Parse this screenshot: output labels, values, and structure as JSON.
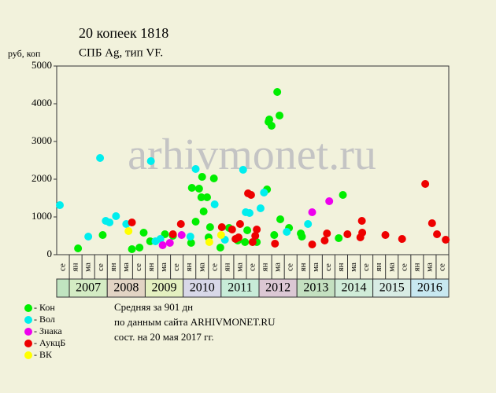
{
  "chart_data": {
    "type": "scatter",
    "title": "20 копеек 1818",
    "subtitle": "СПБ Ag, тип VF.",
    "y_label": "руб, коп",
    "watermark": "arhivmonet.ru",
    "xlim": [
      2006.667,
      2017.0
    ],
    "ylim": [
      0,
      5000
    ],
    "yticks": [
      0,
      1000,
      2000,
      3000,
      4000,
      5000
    ],
    "column_labels": [
      "се",
      "ян",
      "ма",
      "се",
      "ян",
      "ма",
      "се",
      "ян",
      "ма",
      "се",
      "ян",
      "ма",
      "се",
      "ян",
      "ма",
      "се",
      "ян",
      "ма",
      "се",
      "ян",
      "ма",
      "се",
      "ян",
      "ма",
      "се",
      "ян",
      "ма",
      "се",
      "ян",
      "ма",
      "се"
    ],
    "year_labels": [
      null,
      "2007",
      "2008",
      "2009",
      "2010",
      "2011",
      "2012",
      "2013",
      "2014",
      "2015",
      "2016"
    ],
    "year_colors": [
      "#c0e4c0",
      "#d4ecc4",
      "#e2d4c4",
      "#e4f0c0",
      "#d8d8e8",
      "#c8ecd8",
      "#dcc8d4",
      "#c4e0c0",
      "#d0ecd8",
      "#d8ece4",
      "#c8e8f0"
    ],
    "series": [
      {
        "name": "- Кон",
        "color": "#00ee00",
        "x": [
          2007.23,
          2007.88,
          2008.65,
          2008.85,
          2008.96,
          2009.13,
          2009.52,
          2009.73,
          2010.21,
          2010.33,
          2010.23,
          2010.42,
          2010.5,
          2010.48,
          2010.54,
          2010.63,
          2010.67,
          2010.71,
          2010.81,
          2010.98,
          2011.21,
          2011.44,
          2011.63,
          2011.69,
          2011.94,
          2012.21,
          2012.25,
          2012.27,
          2012.33,
          2012.4,
          2012.48,
          2012.54,
          2012.56,
          2012.79,
          2013.1,
          2013.13,
          2014.1,
          2014.21
        ],
        "values": [
          167,
          521,
          146,
          188,
          583,
          354,
          542,
          500,
          313,
          875,
          1771,
          1750,
          2063,
          1521,
          1146,
          1521,
          458,
          729,
          2021,
          188,
          708,
          375,
          333,
          646,
          333,
          1729,
          3521,
          3583,
          3417,
          521,
          4313,
          3688,
          938,
          708,
          563,
          479,
          438,
          1583
        ]
      },
      {
        "name": "- Вол",
        "color": "#00eeee",
        "x": [
          2006.75,
          2007.5,
          2007.81,
          2007.96,
          2008.06,
          2008.23,
          2008.5,
          2009.15,
          2009.27,
          2009.4,
          2010.19,
          2010.33,
          2010.83,
          2011.1,
          2011.58,
          2011.65,
          2011.75,
          2012.04,
          2012.13,
          2012.73,
          2013.29
        ],
        "values": [
          1313,
          479,
          2563,
          896,
          854,
          1021,
          813,
          2479,
          354,
          417,
          479,
          2271,
          1333,
          396,
          2250,
          1125,
          1104,
          1229,
          1646,
          604,
          813
        ]
      },
      {
        "name": "- Знака",
        "color": "#ee00ee",
        "x": [
          2009.46,
          2009.65,
          2009.96,
          2013.4,
          2013.85
        ],
        "values": [
          250,
          313,
          521,
          1125,
          1417
        ]
      },
      {
        "name": "- АукцБ",
        "color": "#ee0000",
        "x": [
          2008.65,
          2009.73,
          2009.94,
          2011.02,
          2011.29,
          2011.38,
          2011.46,
          2011.5,
          2011.71,
          2011.79,
          2011.83,
          2011.9,
          2011.94,
          2012.42,
          2013.4,
          2013.73,
          2013.79,
          2014.33,
          2014.67,
          2014.71,
          2014.72,
          2015.33,
          2015.77,
          2016.38,
          2016.56,
          2016.69,
          2016.92
        ],
        "values": [
          854,
          542,
          813,
          729,
          667,
          417,
          458,
          813,
          1625,
          1583,
          333,
          500,
          667,
          292,
          271,
          375,
          563,
          542,
          458,
          896,
          583,
          521,
          417,
          1875,
          833,
          542,
          396
        ]
      },
      {
        "name": "- ВК",
        "color": "#ffff00",
        "x": [
          2008.56,
          2010.69,
          2011.0
        ],
        "values": [
          625,
          333,
          521
        ]
      }
    ],
    "notes": [
      "Средняя за 901 дн",
      "по данным сайта ARHIVMONET.RU",
      "сост. на 20 мая 2017 гг."
    ]
  }
}
